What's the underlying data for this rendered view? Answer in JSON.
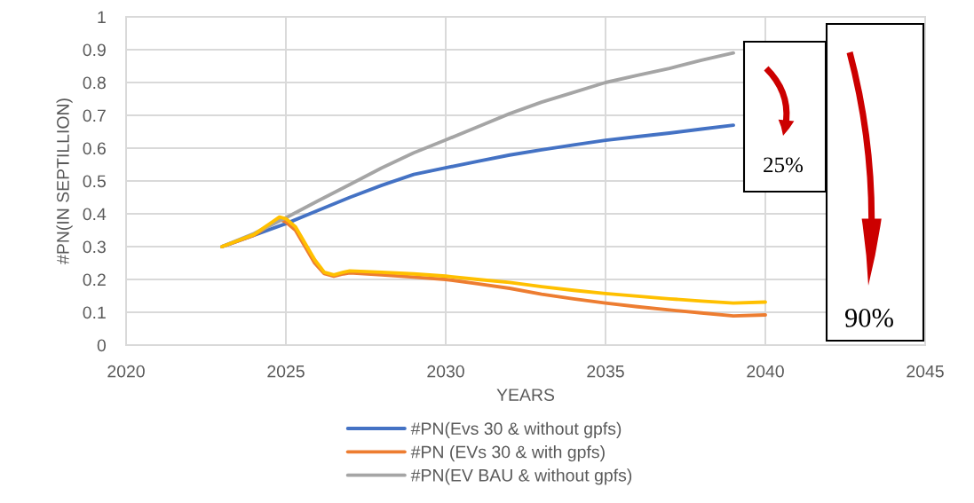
{
  "chart_data": {
    "type": "line",
    "xlabel": "YEARS",
    "ylabel": "#PN(IN SEPTILLION)",
    "xlim": [
      2020,
      2045
    ],
    "xticks": [
      2020,
      2025,
      2030,
      2035,
      2040,
      2045
    ],
    "ylim": [
      0,
      1
    ],
    "yticks": [
      0,
      0.1,
      0.2,
      0.3,
      0.4,
      0.5,
      0.6,
      0.7,
      0.8,
      0.9,
      1
    ],
    "grid": true,
    "legend": "bottom",
    "line_style": "solid",
    "series": [
      {
        "name": "#PN(Evs 30 & without gpfs)",
        "color": "#4472c4",
        "x": [
          2023,
          2024,
          2025,
          2026,
          2027,
          2028,
          2029,
          2030,
          2031,
          2032,
          2033,
          2034,
          2035,
          2036,
          2037,
          2038,
          2039
        ],
        "values": [
          0.3,
          0.335,
          0.37,
          0.41,
          0.45,
          0.487,
          0.52,
          0.54,
          0.56,
          0.579,
          0.595,
          0.61,
          0.624,
          0.635,
          0.646,
          0.658,
          0.67
        ]
      },
      {
        "name": "#PN (EVs 30 & with gpfs)",
        "color": "#ed7d31",
        "x": [
          2023,
          2024,
          2024.5,
          2024.8,
          2025,
          2025.3,
          2025.6,
          2025.9,
          2026.2,
          2026.5,
          2026.8,
          2027,
          2028,
          2029,
          2030,
          2031,
          2032,
          2033,
          2034,
          2035,
          2036,
          2037,
          2038,
          2039,
          2040
        ],
        "values": [
          0.3,
          0.335,
          0.365,
          0.383,
          0.375,
          0.35,
          0.3,
          0.25,
          0.218,
          0.21,
          0.217,
          0.22,
          0.214,
          0.207,
          0.2,
          0.187,
          0.173,
          0.155,
          0.141,
          0.128,
          0.117,
          0.107,
          0.098,
          0.089,
          0.092
        ]
      },
      {
        "name": "#PN(EV BAU & without gpfs)",
        "color": "#a5a5a5",
        "x": [
          2023,
          2024,
          2025,
          2026,
          2027,
          2028,
          2029,
          2030,
          2031,
          2032,
          2033,
          2034,
          2035,
          2036,
          2037,
          2038,
          2039
        ],
        "values": [
          0.3,
          0.34,
          0.388,
          0.439,
          0.489,
          0.54,
          0.586,
          0.625,
          0.665,
          0.705,
          0.74,
          0.77,
          0.8,
          0.822,
          0.843,
          0.868,
          0.89
        ]
      },
      {
        "color": "#ffc000",
        "x": [
          2023,
          2024,
          2024.5,
          2024.8,
          2025,
          2025.3,
          2025.6,
          2025.9,
          2026.2,
          2026.5,
          2026.8,
          2027,
          2028,
          2029,
          2030,
          2031,
          2032,
          2033,
          2034,
          2035,
          2036,
          2037,
          2038,
          2039,
          2040
        ],
        "values": [
          0.3,
          0.337,
          0.37,
          0.39,
          0.385,
          0.36,
          0.31,
          0.26,
          0.222,
          0.214,
          0.222,
          0.226,
          0.222,
          0.217,
          0.21,
          0.2,
          0.191,
          0.178,
          0.167,
          0.157,
          0.149,
          0.141,
          0.134,
          0.128,
          0.131
        ]
      }
    ],
    "annotations": [
      "25%",
      "90%"
    ]
  }
}
